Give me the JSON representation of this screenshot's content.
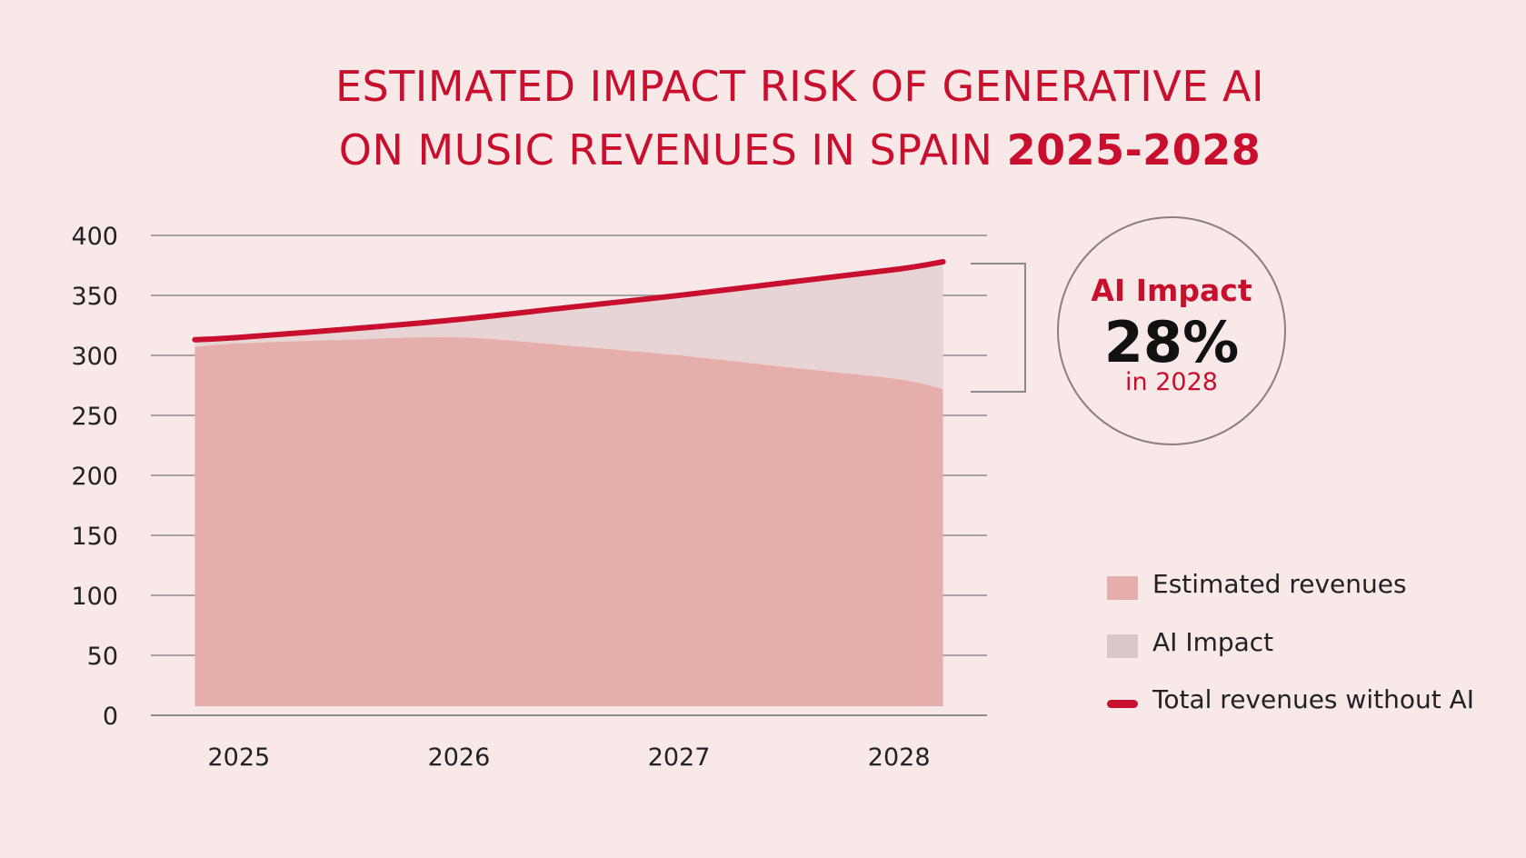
{
  "title": {
    "line1": "ESTIMATED IMPACT RISK OF GENERATIVE AI",
    "line2": "ON MUSIC REVENUES IN SPAIN ",
    "line2_bold": "2025-2028"
  },
  "callout": {
    "label": "AI Impact",
    "value": "28%",
    "year": "in 2028"
  },
  "legend": {
    "items": [
      {
        "label": "Estimated revenues",
        "color": "#e5aeab",
        "kind": "box"
      },
      {
        "label": "AI Impact",
        "color": "#d8c8c8",
        "kind": "box"
      },
      {
        "label": "Total revenues without AI",
        "color": "#c8102e",
        "kind": "line"
      }
    ]
  },
  "colors": {
    "accent": "#c8102e",
    "estimated_fill": "#e5aeab",
    "impact_fill": "#e7d5d5",
    "grid": "#8f8a8a",
    "background": "#f8e8e8"
  },
  "chart_data": {
    "type": "area",
    "title": "ESTIMATED IMPACT RISK OF GENERATIVE AI ON MUSIC REVENUES IN SPAIN 2025-2028",
    "categories": [
      "2025",
      "2026",
      "2027",
      "2028"
    ],
    "x": [
      2024.8,
      2025.0,
      2025.5,
      2026.0,
      2026.5,
      2027.0,
      2027.5,
      2028.0,
      2028.2
    ],
    "series": [
      {
        "name": "Total revenues without AI",
        "type": "line",
        "values": [
          313,
          315,
          322,
          330,
          340,
          350,
          361,
          372,
          378
        ]
      },
      {
        "name": "Estimated revenues",
        "type": "area",
        "values": [
          307,
          310,
          313,
          315,
          308,
          300,
          290,
          280,
          272
        ]
      },
      {
        "name": "AI Impact",
        "type": "area-between",
        "values": [
          6,
          5,
          9,
          15,
          32,
          50,
          71,
          92,
          106
        ]
      }
    ],
    "yticks": [
      0,
      50,
      100,
      150,
      200,
      250,
      300,
      350,
      400
    ],
    "ylim": [
      0,
      400
    ],
    "xlim": [
      2024.6,
      2028.4
    ],
    "grid": true,
    "legend_position": "right",
    "annotation": {
      "label": "AI Impact",
      "value": "28%",
      "sub": "in 2028"
    }
  }
}
